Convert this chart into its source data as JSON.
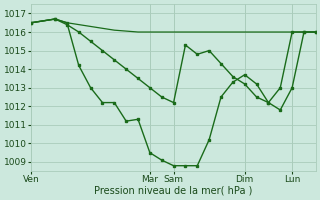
{
  "bg_color": "#cce8dd",
  "grid_color": "#aaccbb",
  "line_color": "#1a6b1a",
  "xlabel": "Pression niveau de la mer( hPa )",
  "xlabel_color": "#1a4a1a",
  "tick_color": "#1a4a1a",
  "ylim": [
    1008.5,
    1017.5
  ],
  "yticks": [
    1009,
    1010,
    1011,
    1012,
    1013,
    1014,
    1015,
    1016,
    1017
  ],
  "total_points": 48,
  "flat_line_x": [
    0,
    4,
    6,
    8,
    10,
    12,
    14,
    16,
    18,
    20,
    22,
    24,
    26,
    28,
    30,
    32,
    34,
    36,
    38,
    40,
    42,
    44,
    46,
    48
  ],
  "flat_line_y": [
    1016.5,
    1016.7,
    1016.5,
    1016.4,
    1016.3,
    1016.2,
    1016.1,
    1016.05,
    1016.0,
    1016.0,
    1016.0,
    1016.0,
    1016.0,
    1016.0,
    1016.0,
    1016.0,
    1016.0,
    1016.0,
    1016.0,
    1016.0,
    1016.0,
    1016.0,
    1016.0,
    1016.0
  ],
  "mid_line_x": [
    0,
    4,
    6,
    8,
    10,
    12,
    14,
    16,
    18,
    20,
    22,
    24,
    26,
    28,
    30,
    32,
    34,
    36,
    38,
    40,
    42,
    44,
    46,
    48
  ],
  "mid_line_y": [
    1016.5,
    1016.7,
    1016.4,
    1016.0,
    1015.5,
    1015.0,
    1014.5,
    1014.0,
    1013.5,
    1013.0,
    1012.5,
    1012.2,
    1015.3,
    1014.8,
    1015.0,
    1014.3,
    1013.6,
    1013.2,
    1012.5,
    1012.2,
    1013.0,
    1016.0,
    1016.0,
    1016.0
  ],
  "low_line_x": [
    0,
    4,
    6,
    8,
    10,
    12,
    14,
    16,
    18,
    20,
    22,
    24,
    26,
    28,
    30,
    32,
    34,
    36,
    38,
    40,
    42,
    44,
    46,
    48
  ],
  "low_line_y": [
    1016.5,
    1016.7,
    1016.5,
    1014.2,
    1013.0,
    1012.2,
    1012.2,
    1011.2,
    1011.3,
    1009.5,
    1009.1,
    1008.8,
    1008.8,
    1008.8,
    1010.2,
    1012.5,
    1013.3,
    1013.7,
    1013.2,
    1012.2,
    1011.8,
    1013.0,
    1016.0,
    1016.0
  ],
  "xtick_positions": [
    0,
    20,
    24,
    36,
    44
  ],
  "xtick_labels": [
    "Ven",
    "Mar",
    "Sam",
    "Dim",
    "Lun"
  ]
}
